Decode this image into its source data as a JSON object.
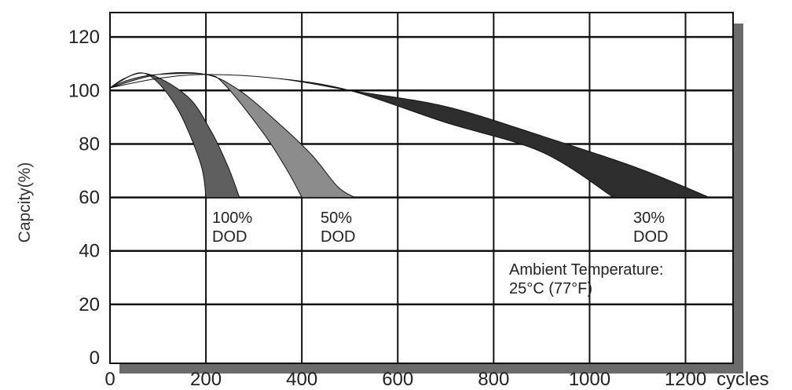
{
  "chart_data": {
    "type": "area",
    "title": "",
    "xlabel": "cycles",
    "ylabel": "Capcity(%)",
    "xlim": [
      0,
      1300
    ],
    "ylim": [
      0,
      130
    ],
    "x_ticks": [
      0,
      200,
      400,
      600,
      800,
      1000,
      1200
    ],
    "y_ticks": [
      0,
      20,
      40,
      60,
      80,
      100,
      120
    ],
    "grid": true,
    "series": [
      {
        "name": "100% DOD",
        "color": "#5f5f5f",
        "upper": [
          [
            0,
            101
          ],
          [
            30,
            104.5
          ],
          [
            70,
            106.5
          ],
          [
            110,
            101
          ],
          [
            150,
            90
          ],
          [
            190,
            72
          ],
          [
            200,
            60
          ]
        ],
        "lower": [
          [
            0,
            101
          ],
          [
            70,
            106.5
          ],
          [
            160,
            98
          ],
          [
            210,
            85
          ],
          [
            245,
            72
          ],
          [
            270,
            60
          ]
        ]
      },
      {
        "name": "50% DOD",
        "color": "#8c8c8c",
        "upper": [
          [
            0,
            101
          ],
          [
            40,
            104
          ],
          [
            100,
            106
          ],
          [
            200,
            106
          ],
          [
            240,
            102
          ],
          [
            320,
            84
          ],
          [
            370,
            70
          ],
          [
            400,
            60
          ]
        ],
        "lower": [
          [
            0,
            101
          ],
          [
            100,
            106
          ],
          [
            200,
            106
          ],
          [
            270,
            100
          ],
          [
            350,
            88
          ],
          [
            420,
            76
          ],
          [
            475,
            64
          ],
          [
            510,
            60
          ]
        ]
      },
      {
        "name": "30% DOD",
        "color": "#2e2e2e",
        "upper": [
          [
            0,
            101
          ],
          [
            100,
            104.5
          ],
          [
            200,
            106
          ],
          [
            350,
            104.5
          ],
          [
            500,
            100
          ],
          [
            700,
            88
          ],
          [
            900,
            77
          ],
          [
            1050,
            60
          ]
        ],
        "lower": [
          [
            0,
            101
          ],
          [
            100,
            104.5
          ],
          [
            200,
            106
          ],
          [
            350,
            104.5
          ],
          [
            500,
            100
          ],
          [
            700,
            94
          ],
          [
            900,
            83
          ],
          [
            1100,
            71
          ],
          [
            1250,
            60
          ]
        ]
      }
    ],
    "annotations": [
      {
        "lines": [
          "100%",
          "DOD"
        ]
      },
      {
        "lines": [
          "50%",
          "DOD"
        ]
      },
      {
        "lines": [
          "30%",
          "DOD"
        ]
      },
      {
        "lines": [
          "Ambient Temperature:",
          "25°C (77°F)"
        ]
      }
    ]
  }
}
